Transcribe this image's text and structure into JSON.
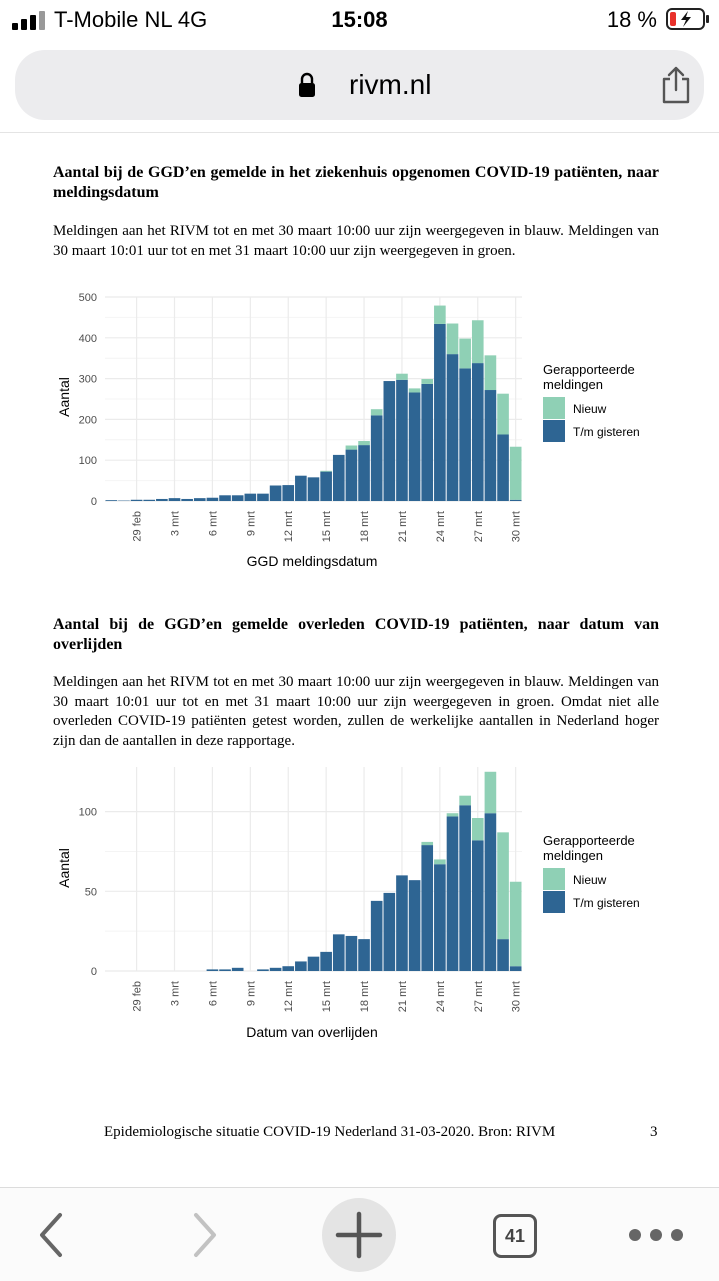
{
  "status_bar": {
    "carrier": "T-Mobile NL   4G",
    "time": "15:08",
    "battery_percent": "18 %"
  },
  "browser": {
    "url": "rivm.nl",
    "tab_count": "41",
    "icons": [
      "lock-icon",
      "share-icon",
      "back-icon",
      "forward-icon",
      "new-tab-icon",
      "tabs-icon",
      "more-icon"
    ]
  },
  "section1": {
    "heading": "Aantal bij de GGD’en gemelde in het ziekenhuis opgenomen COVID-19 patiënten, naar meldingsdatum",
    "paragraph": "Meldingen aan het RIVM tot en met 30 maart 10:00 uur zijn weergegeven in blauw. Meldingen van 30 maart 10:01 uur tot en met 31 maart 10:00 uur zijn weergegeven in groen."
  },
  "section2": {
    "heading": "Aantal bij de GGD’en gemelde overleden COVID-19 patiënten, naar datum van overlijden",
    "paragraph": "Meldingen aan het RIVM tot en met 30 maart 10:00 uur zijn weergegeven in blauw. Meldingen van 30 maart 10:01 uur tot en met 31 maart 10:00 uur zijn weergegeven in groen. Omdat niet alle overleden COVID-19 patiënten getest worden, zullen de werkelijke aantallen in Nederland hoger zijn dan de aantallen in deze rapportage."
  },
  "footer": {
    "text": "Epidemiologische situatie COVID-19 Nederland 31-03-2020.  Bron: RIVM",
    "page_number": "3"
  },
  "colors": {
    "blue": "#2e6593",
    "green": "#8fd0b5",
    "grid": "#ebebeb"
  },
  "chart_data": [
    {
      "type": "bar",
      "stacked": true,
      "xlabel": "GGD meldingsdatum",
      "ylabel": "Aantal",
      "ylim": [
        0,
        500
      ],
      "yticks": [
        0,
        100,
        200,
        300,
        400,
        500
      ],
      "grid": true,
      "legend": {
        "title": "Gerapporteerde meldingen",
        "position": "right",
        "entries": [
          "Nieuw",
          "T/m gisteren"
        ]
      },
      "x_tick_labels": [
        "29 feb",
        "3 mrt",
        "6 mrt",
        "9 mrt",
        "12 mrt",
        "15 mrt",
        "18 mrt",
        "21 mrt",
        "24 mrt",
        "27 mrt",
        "30 mrt"
      ],
      "categories": [
        "27 feb",
        "28 feb",
        "29 feb",
        "1 mrt",
        "2 mrt",
        "3 mrt",
        "4 mrt",
        "5 mrt",
        "6 mrt",
        "7 mrt",
        "8 mrt",
        "9 mrt",
        "10 mrt",
        "11 mrt",
        "12 mrt",
        "13 mrt",
        "14 mrt",
        "15 mrt",
        "16 mrt",
        "17 mrt",
        "18 mrt",
        "19 mrt",
        "20 mrt",
        "21 mrt",
        "22 mrt",
        "23 mrt",
        "24 mrt",
        "25 mrt",
        "26 mrt",
        "27 mrt",
        "28 mrt",
        "29 mrt",
        "30 mrt"
      ],
      "series": [
        {
          "name": "T/m gisteren",
          "values": [
            2,
            1,
            3,
            3,
            5,
            7,
            5,
            7,
            8,
            14,
            14,
            18,
            18,
            38,
            39,
            62,
            58,
            72,
            113,
            126,
            137,
            210,
            294,
            297,
            266,
            287,
            434,
            360,
            325,
            338,
            272,
            163,
            3
          ]
        },
        {
          "name": "Nieuw",
          "values": [
            0,
            0,
            0,
            0,
            0,
            0,
            0,
            0,
            0,
            0,
            0,
            0,
            0,
            0,
            0,
            0,
            0,
            2,
            0,
            10,
            10,
            15,
            0,
            15,
            10,
            12,
            45,
            75,
            73,
            105,
            85,
            100,
            130
          ]
        }
      ]
    },
    {
      "type": "bar",
      "stacked": true,
      "xlabel": "Datum van overlijden",
      "ylabel": "Aantal",
      "ylim": [
        0,
        128
      ],
      "yticks": [
        0,
        50,
        100
      ],
      "grid": true,
      "legend": {
        "title": "Gerapporteerde meldingen",
        "position": "right",
        "entries": [
          "Nieuw",
          "T/m gisteren"
        ]
      },
      "x_tick_labels": [
        "29 feb",
        "3 mrt",
        "6 mrt",
        "9 mrt",
        "12 mrt",
        "15 mrt",
        "18 mrt",
        "21 mrt",
        "24 mrt",
        "27 mrt",
        "30 mrt"
      ],
      "categories": [
        "27 feb",
        "28 feb",
        "29 feb",
        "1 mrt",
        "2 mrt",
        "3 mrt",
        "4 mrt",
        "5 mrt",
        "6 mrt",
        "7 mrt",
        "8 mrt",
        "9 mrt",
        "10 mrt",
        "11 mrt",
        "12 mrt",
        "13 mrt",
        "14 mrt",
        "15 mrt",
        "16 mrt",
        "17 mrt",
        "18 mrt",
        "19 mrt",
        "20 mrt",
        "21 mrt",
        "22 mrt",
        "23 mrt",
        "24 mrt",
        "25 mrt",
        "26 mrt",
        "27 mrt",
        "28 mrt",
        "29 mrt",
        "30 mrt"
      ],
      "series": [
        {
          "name": "T/m gisteren",
          "values": [
            0,
            0,
            0,
            0,
            0,
            0,
            0,
            0,
            1,
            1,
            2,
            0,
            1,
            2,
            3,
            6,
            9,
            12,
            23,
            22,
            20,
            44,
            49,
            60,
            57,
            79,
            67,
            97,
            104,
            82,
            99,
            20,
            3
          ]
        },
        {
          "name": "Nieuw",
          "values": [
            0,
            0,
            0,
            0,
            0,
            0,
            0,
            0,
            0,
            0,
            0,
            0,
            0,
            0,
            0,
            0,
            0,
            0,
            0,
            0,
            0,
            0,
            0,
            0,
            0,
            2,
            3,
            2,
            6,
            14,
            26,
            67,
            53
          ]
        }
      ]
    }
  ]
}
